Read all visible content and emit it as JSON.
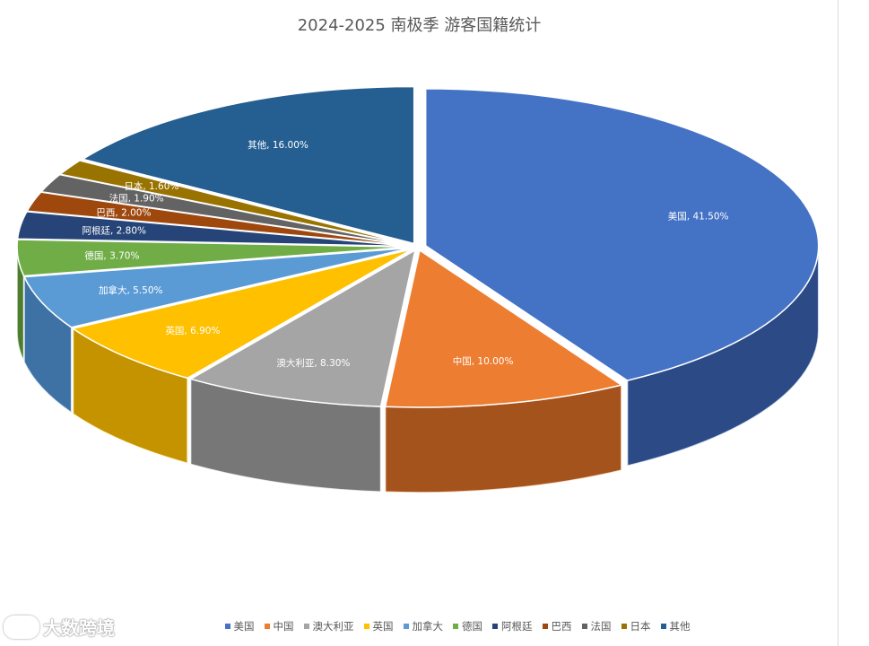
{
  "chart_data": {
    "type": "pie",
    "title": "2024-2025 南极季 游客国籍统计",
    "slices": [
      {
        "label": "美国",
        "value": 41.5,
        "display": "美国, 41.50%",
        "color": "#4472c4",
        "side": "#1f3564"
      },
      {
        "label": "中国",
        "value": 10.0,
        "display": "中国, 10.00%",
        "color": "#ed7d31",
        "side": "#7f3d13"
      },
      {
        "label": "澳大利亚",
        "value": 8.3,
        "display": "澳大利亚, 8.30%",
        "color": "#a5a5a5",
        "side": "#5e5e5e"
      },
      {
        "label": "英国",
        "value": 6.9,
        "display": "英国, 6.90%",
        "color": "#ffc000",
        "side": "#a67c00"
      },
      {
        "label": "加拿大",
        "value": 5.5,
        "display": "加拿大, 5.50%",
        "color": "#5b9bd5",
        "side": "#2f5d8a"
      },
      {
        "label": "德国",
        "value": 3.7,
        "display": "德国, 3.70%",
        "color": "#70ad47",
        "side": "#3d6326"
      },
      {
        "label": "阿根廷",
        "value": 2.8,
        "display": "阿根廷, 2.80%",
        "color": "#264478",
        "side": "#14264a"
      },
      {
        "label": "巴西",
        "value": 2.0,
        "display": "巴西, 2.00%",
        "color": "#9e480e",
        "side": "#5a2806"
      },
      {
        "label": "法国",
        "value": 1.9,
        "display": "法国, 1.90%",
        "color": "#636363",
        "side": "#363636"
      },
      {
        "label": "日本",
        "value": 1.6,
        "display": "日本, 1.60%",
        "color": "#997300",
        "side": "#574100"
      },
      {
        "label": "其他",
        "value": 16.0,
        "display": "其他, 16.00%",
        "color": "#255e91",
        "side": "#123352"
      }
    ],
    "legend_position": "bottom",
    "style": "3d-exploded"
  },
  "watermark": {
    "text": "大数跨境"
  }
}
